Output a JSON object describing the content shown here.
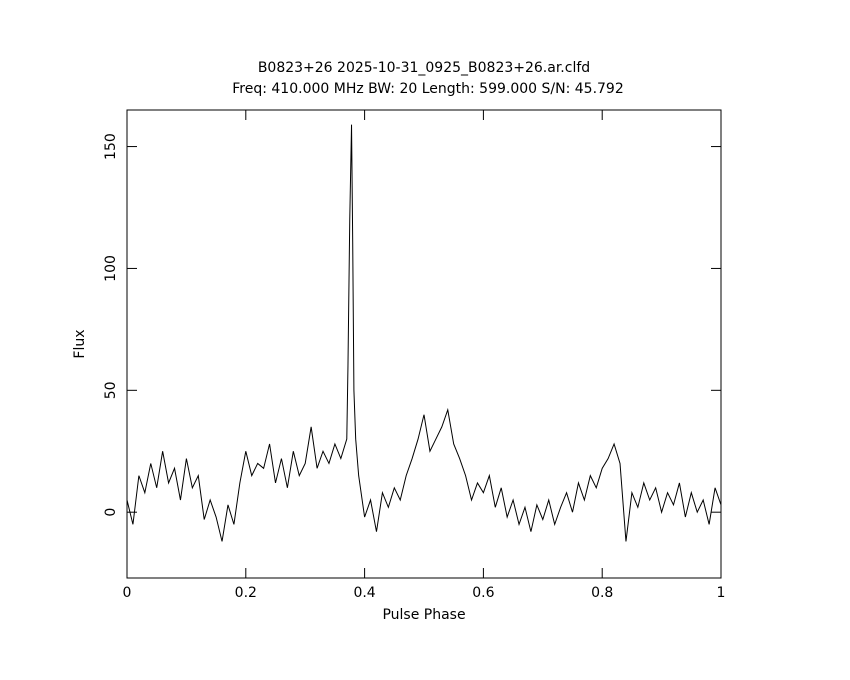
{
  "chart_data": {
    "type": "line",
    "title": "B0823+26 2025-10-31_0925_B0823+26.ar.clfd",
    "subtitle": "Freq: 410.000 MHz BW: 20 Length: 599.000 S/N: 45.792",
    "x_label": "Pulse Phase",
    "y_label": "Flux",
    "xlim": [
      0,
      1
    ],
    "ylim": [
      -27,
      165
    ],
    "xticks": [
      0,
      0.2,
      0.4,
      0.6,
      0.8,
      1
    ],
    "yticks": [
      0,
      50,
      100,
      150
    ],
    "color": "#000000",
    "x": [
      0,
      0.01,
      0.02,
      0.03,
      0.04,
      0.05,
      0.06,
      0.07,
      0.08,
      0.09,
      0.1,
      0.11,
      0.12,
      0.13,
      0.14,
      0.15,
      0.16,
      0.17,
      0.18,
      0.19,
      0.2,
      0.21,
      0.22,
      0.23,
      0.24,
      0.25,
      0.26,
      0.27,
      0.28,
      0.29,
      0.3,
      0.31,
      0.32,
      0.33,
      0.34,
      0.35,
      0.36,
      0.37,
      0.372,
      0.375,
      0.378,
      0.38,
      0.382,
      0.385,
      0.39,
      0.4,
      0.41,
      0.42,
      0.43,
      0.44,
      0.45,
      0.46,
      0.47,
      0.48,
      0.49,
      0.5,
      0.51,
      0.52,
      0.53,
      0.54,
      0.55,
      0.56,
      0.57,
      0.58,
      0.59,
      0.6,
      0.61,
      0.62,
      0.63,
      0.64,
      0.65,
      0.66,
      0.67,
      0.68,
      0.69,
      0.7,
      0.71,
      0.72,
      0.73,
      0.74,
      0.75,
      0.76,
      0.77,
      0.78,
      0.79,
      0.8,
      0.81,
      0.82,
      0.83,
      0.84,
      0.85,
      0.86,
      0.87,
      0.88,
      0.89,
      0.9,
      0.91,
      0.92,
      0.93,
      0.94,
      0.95,
      0.96,
      0.97,
      0.98,
      0.99,
      1
    ],
    "values": [
      5,
      -5,
      15,
      8,
      20,
      10,
      25,
      12,
      18,
      5,
      22,
      10,
      15,
      -3,
      5,
      -2,
      -12,
      3,
      -5,
      12,
      25,
      15,
      20,
      18,
      28,
      12,
      22,
      10,
      25,
      15,
      20,
      35,
      18,
      25,
      20,
      28,
      22,
      30,
      60,
      120,
      159,
      110,
      50,
      30,
      15,
      -2,
      5,
      -8,
      8,
      2,
      10,
      5,
      15,
      22,
      30,
      40,
      25,
      30,
      35,
      42,
      28,
      22,
      15,
      5,
      12,
      8,
      15,
      2,
      10,
      -2,
      5,
      -5,
      2,
      -8,
      3,
      -3,
      5,
      -5,
      2,
      8,
      0,
      12,
      5,
      15,
      10,
      18,
      22,
      28,
      20,
      -12,
      8,
      2,
      12,
      5,
      10,
      0,
      8,
      3,
      12,
      -2,
      8,
      0,
      5,
      -5,
      10,
      3
    ]
  }
}
